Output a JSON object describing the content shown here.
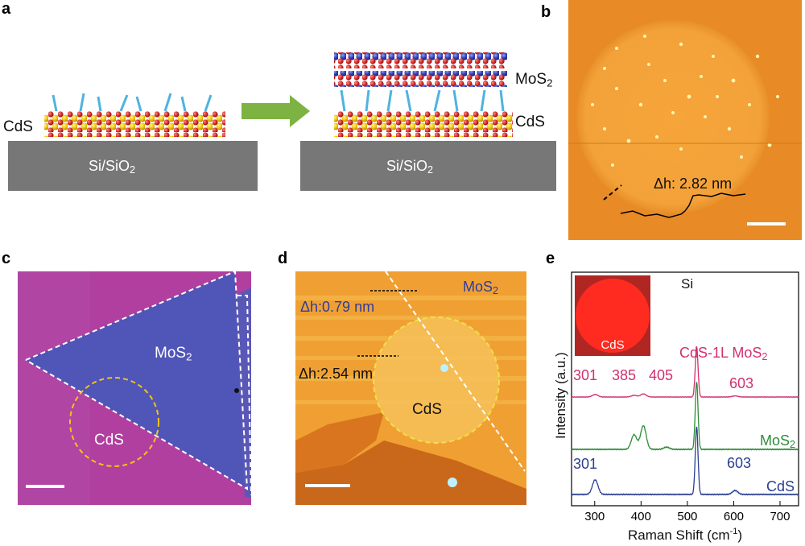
{
  "panels": {
    "a": {
      "label": "a",
      "left_substrate": "Si/SiO",
      "left_substrate_sub": "2",
      "right_substrate": "Si/SiO",
      "right_substrate_sub": "2",
      "cds_left": "CdS",
      "mos2_label": "MoS",
      "mos2_sub": "2",
      "cds_right": "CdS"
    },
    "b": {
      "label": "b",
      "dh_text": "Δh: 2.82 nm"
    },
    "c": {
      "label": "c",
      "mos2_label": "MoS",
      "mos2_sub": "2",
      "cds_label": "CdS"
    },
    "d": {
      "label": "d",
      "mos2_label": "MoS",
      "mos2_sub": "2",
      "dh1": "Δh:0.79 nm",
      "dh2": "Δh:2.54 nm",
      "cds_label": "CdS"
    },
    "e": {
      "label": "e",
      "inset_label": "CdS",
      "si_label": "Si",
      "colors": {
        "cds_1l_mos2": "#d1306f",
        "mos2": "#2e8b3a",
        "cds": "#2a3f8f"
      }
    }
  },
  "chart_data": {
    "type": "line",
    "xlabel": "Raman Shift (cm",
    "xlabel_sup": "-1",
    "xlabel_end": ")",
    "ylabel": "Intensity (a.u.)",
    "xlim": [
      250,
      740
    ],
    "x_ticks": [
      300,
      400,
      500,
      600,
      700
    ],
    "series": [
      {
        "name": "CdS-1L MoS",
        "name_sub": "2",
        "color": "#d1306f",
        "peak_labels": [
          "301",
          "385",
          "405",
          "603"
        ],
        "peaks": [
          [
            301,
            0.45
          ],
          [
            385,
            0.3
          ],
          [
            405,
            0.55
          ],
          [
            520,
            9.0
          ],
          [
            603,
            0.2
          ]
        ]
      },
      {
        "name": "MoS",
        "name_sub": "2",
        "color": "#2e8b3a",
        "peak_labels": [],
        "peaks": [
          [
            385,
            1.3
          ],
          [
            405,
            2.1
          ],
          [
            455,
            0.2
          ],
          [
            520,
            6.0
          ]
        ]
      },
      {
        "name": "CdS",
        "name_sub": "",
        "color": "#2a3f8f",
        "peak_labels": [
          "301",
          "603"
        ],
        "peaks": [
          [
            301,
            1.3
          ],
          [
            520,
            6.0
          ],
          [
            603,
            0.35
          ]
        ]
      }
    ]
  }
}
